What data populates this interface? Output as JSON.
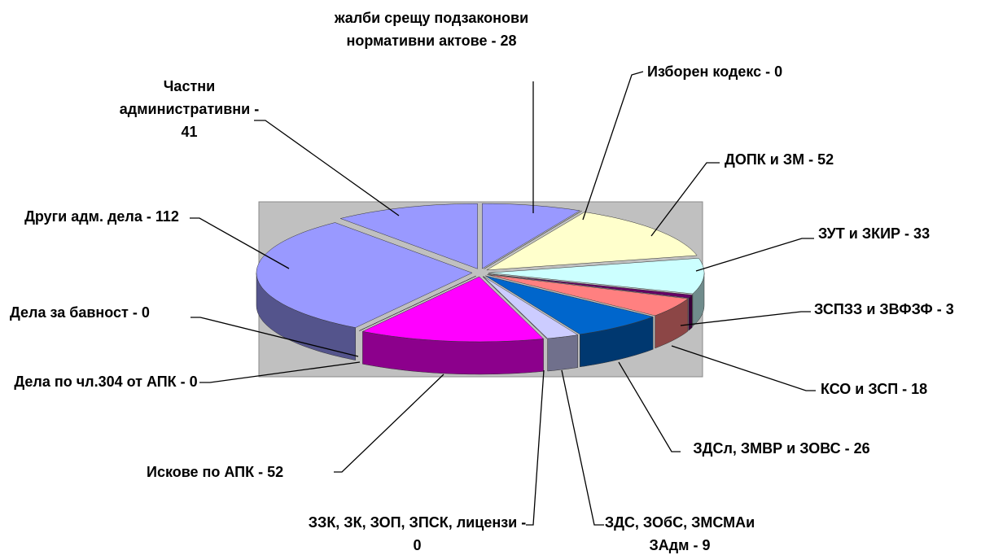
{
  "chart_data": {
    "type": "pie",
    "categories": [
      "жалби срещу подзаконови нормативни актове - 28",
      "Изборен кодекс - 0",
      "ДОПК и ЗМ - 52",
      "ЗУТ и ЗКИР - 33",
      "ЗСПЗЗ и ЗВФЗФ - 3",
      "КСО и ЗСП - 18",
      "ЗДСл, ЗМВР и ЗОВС - 26",
      "ЗДС, ЗОбС, ЗМСМАи ЗАдм - 9",
      "ЗЗК, ЗК, ЗОП, ЗПСК, лицензи - 0",
      "Искове по АПК - 52",
      "Дела по чл.304 от АПК - 0",
      "Дела за бавност - 0",
      "Други адм. дела - 112",
      "Частни административни - 41"
    ],
    "values": [
      28,
      0,
      52,
      33,
      3,
      18,
      26,
      9,
      0,
      52,
      0,
      0,
      112,
      41
    ],
    "colors": [
      "#9999ff",
      "#993366",
      "#ffffcc",
      "#ccffff",
      "#660066",
      "#ff8080",
      "#0066cc",
      "#ccccff",
      "#000080",
      "#ff00ff",
      "#00c0c0",
      "#800080",
      "#9999ff",
      "#9999ff"
    ]
  }
}
